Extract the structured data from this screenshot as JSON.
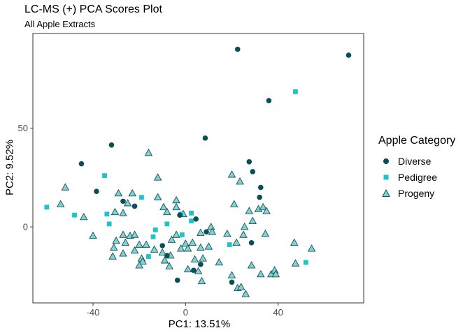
{
  "chart_data": {
    "type": "scatter",
    "title": "LC-MS (+) PCA Scores Plot",
    "subtitle": "All Apple Extracts",
    "xlabel": "PC1: 13.51%",
    "ylabel": "PC2: 9.52%",
    "xlim": [
      -66,
      77
    ],
    "ylim": [
      -38.5,
      98
    ],
    "x_ticks": [
      -40,
      0,
      40
    ],
    "x_tick_labels": [
      "-40",
      "0",
      "40"
    ],
    "y_ticks": [
      0,
      50
    ],
    "y_tick_labels": [
      "0",
      "50"
    ],
    "grid": false,
    "legend_title": "Apple Category",
    "legend_position": "right",
    "series": [
      {
        "name": "Diverse",
        "color": "#0b4f56",
        "marker": "circle",
        "points": [
          [
            22.5,
            90.0
          ],
          [
            70.5,
            87.0
          ],
          [
            36.0,
            64.0
          ],
          [
            8.5,
            45.0
          ],
          [
            -32.0,
            41.5
          ],
          [
            -45.0,
            32.0
          ],
          [
            27.5,
            33.0
          ],
          [
            29.0,
            28.0
          ],
          [
            32.5,
            20.0
          ],
          [
            32.0,
            15.0
          ],
          [
            -38.5,
            18.0
          ],
          [
            -27.0,
            13.0
          ],
          [
            -22.0,
            10.5
          ],
          [
            28.5,
            -8.0
          ],
          [
            -10.0,
            -9.5
          ],
          [
            -2.5,
            6.0
          ],
          [
            4.5,
            4.0
          ],
          [
            9.0,
            -2.5
          ],
          [
            -8.0,
            -14.5
          ],
          [
            -3.5,
            -27.0
          ],
          [
            3.5,
            -22.0
          ],
          [
            6.5,
            -19.0
          ],
          [
            20.0,
            -28.0
          ]
        ]
      },
      {
        "name": "Pedigree",
        "color": "#1ec3c7",
        "marker": "square",
        "points": [
          [
            47.5,
            68.5
          ],
          [
            -35.0,
            26.0
          ],
          [
            -19.0,
            15.0
          ],
          [
            -60.0,
            10.0
          ],
          [
            -48.0,
            6.0
          ],
          [
            -34.0,
            6.5
          ],
          [
            -33.0,
            1.5
          ],
          [
            -2.0,
            6.5
          ],
          [
            2.5,
            7.0
          ],
          [
            2.5,
            3.0
          ],
          [
            -8.0,
            1.5
          ],
          [
            -1.5,
            -4.0
          ],
          [
            -13.0,
            -1.5
          ],
          [
            -14.0,
            -5.0
          ],
          [
            -16.0,
            -15.0
          ],
          [
            19.0,
            -9.0
          ],
          [
            52.0,
            -18.0
          ]
        ]
      },
      {
        "name": "Progeny",
        "color": "#7fd4d6",
        "stroke": "#1a4d52",
        "marker": "triangle",
        "points": [
          [
            -16.0,
            37.5
          ],
          [
            -52.0,
            20.0
          ],
          [
            -12.0,
            25.0
          ],
          [
            -29.0,
            17.0
          ],
          [
            -23.0,
            17.0
          ],
          [
            -25.0,
            12.0
          ],
          [
            -54.0,
            11.5
          ],
          [
            -44.0,
            5.0
          ],
          [
            -30.5,
            7.5
          ],
          [
            -27.0,
            7.0
          ],
          [
            -12.0,
            15.0
          ],
          [
            -4.0,
            13.5
          ],
          [
            -9.5,
            10.0
          ],
          [
            -4.0,
            10.0
          ],
          [
            -8.0,
            7.5
          ],
          [
            -1.0,
            6.5
          ],
          [
            20.0,
            26.5
          ],
          [
            23.5,
            23.0
          ],
          [
            21.0,
            11.5
          ],
          [
            27.5,
            8.0
          ],
          [
            31.5,
            9.0
          ],
          [
            33.5,
            10.0
          ],
          [
            35.0,
            8.0
          ],
          [
            29.0,
            3.0
          ],
          [
            25.5,
            0.0
          ],
          [
            -40.0,
            -4.5
          ],
          [
            -27.0,
            -4.0
          ],
          [
            -24.0,
            -4.5
          ],
          [
            -22.0,
            -4.0
          ],
          [
            -30.0,
            -7.0
          ],
          [
            -26.0,
            -8.0
          ],
          [
            -20.0,
            -9.0
          ],
          [
            -17.0,
            -9.0
          ],
          [
            -4.0,
            -4.0
          ],
          [
            -6.0,
            -6.5
          ],
          [
            0.0,
            -8.5
          ],
          [
            3.0,
            -8.0
          ],
          [
            6.5,
            -3.0
          ],
          [
            11.0,
            0.0
          ],
          [
            11.5,
            -2.5
          ],
          [
            18.0,
            -3.5
          ],
          [
            22.0,
            -8.0
          ],
          [
            25.0,
            -4.0
          ],
          [
            34.5,
            -3.5
          ],
          [
            47.0,
            -8.0
          ],
          [
            54.5,
            -11.0
          ],
          [
            -31.0,
            -10.5
          ],
          [
            -27.0,
            -13.5
          ],
          [
            -31.5,
            -15.0
          ],
          [
            -22.0,
            -12.0
          ],
          [
            -13.5,
            -11.5
          ],
          [
            -10.0,
            -13.0
          ],
          [
            -6.5,
            -14.5
          ],
          [
            -2.0,
            -11.0
          ],
          [
            1.0,
            -11.0
          ],
          [
            6.5,
            -10.5
          ],
          [
            10.0,
            -10.0
          ],
          [
            -19.0,
            -16.0
          ],
          [
            -18.5,
            -17.5
          ],
          [
            -20.0,
            -19.5
          ],
          [
            -9.0,
            -17.0
          ],
          [
            -7.0,
            -20.0
          ],
          [
            4.0,
            -16.5
          ],
          [
            7.5,
            -16.0
          ],
          [
            1.0,
            -21.5
          ],
          [
            5.5,
            -22.5
          ],
          [
            14.5,
            -18.0
          ],
          [
            28.5,
            -19.5
          ],
          [
            32.5,
            -24.0
          ],
          [
            37.0,
            -24.0
          ],
          [
            38.5,
            -22.0
          ],
          [
            39.0,
            -24.0
          ],
          [
            47.5,
            -18.5
          ],
          [
            20.0,
            -24.5
          ],
          [
            7.0,
            -27.5
          ],
          [
            22.5,
            -31.0
          ],
          [
            24.0,
            -30.5
          ],
          [
            26.0,
            -34.0
          ]
        ]
      }
    ]
  }
}
